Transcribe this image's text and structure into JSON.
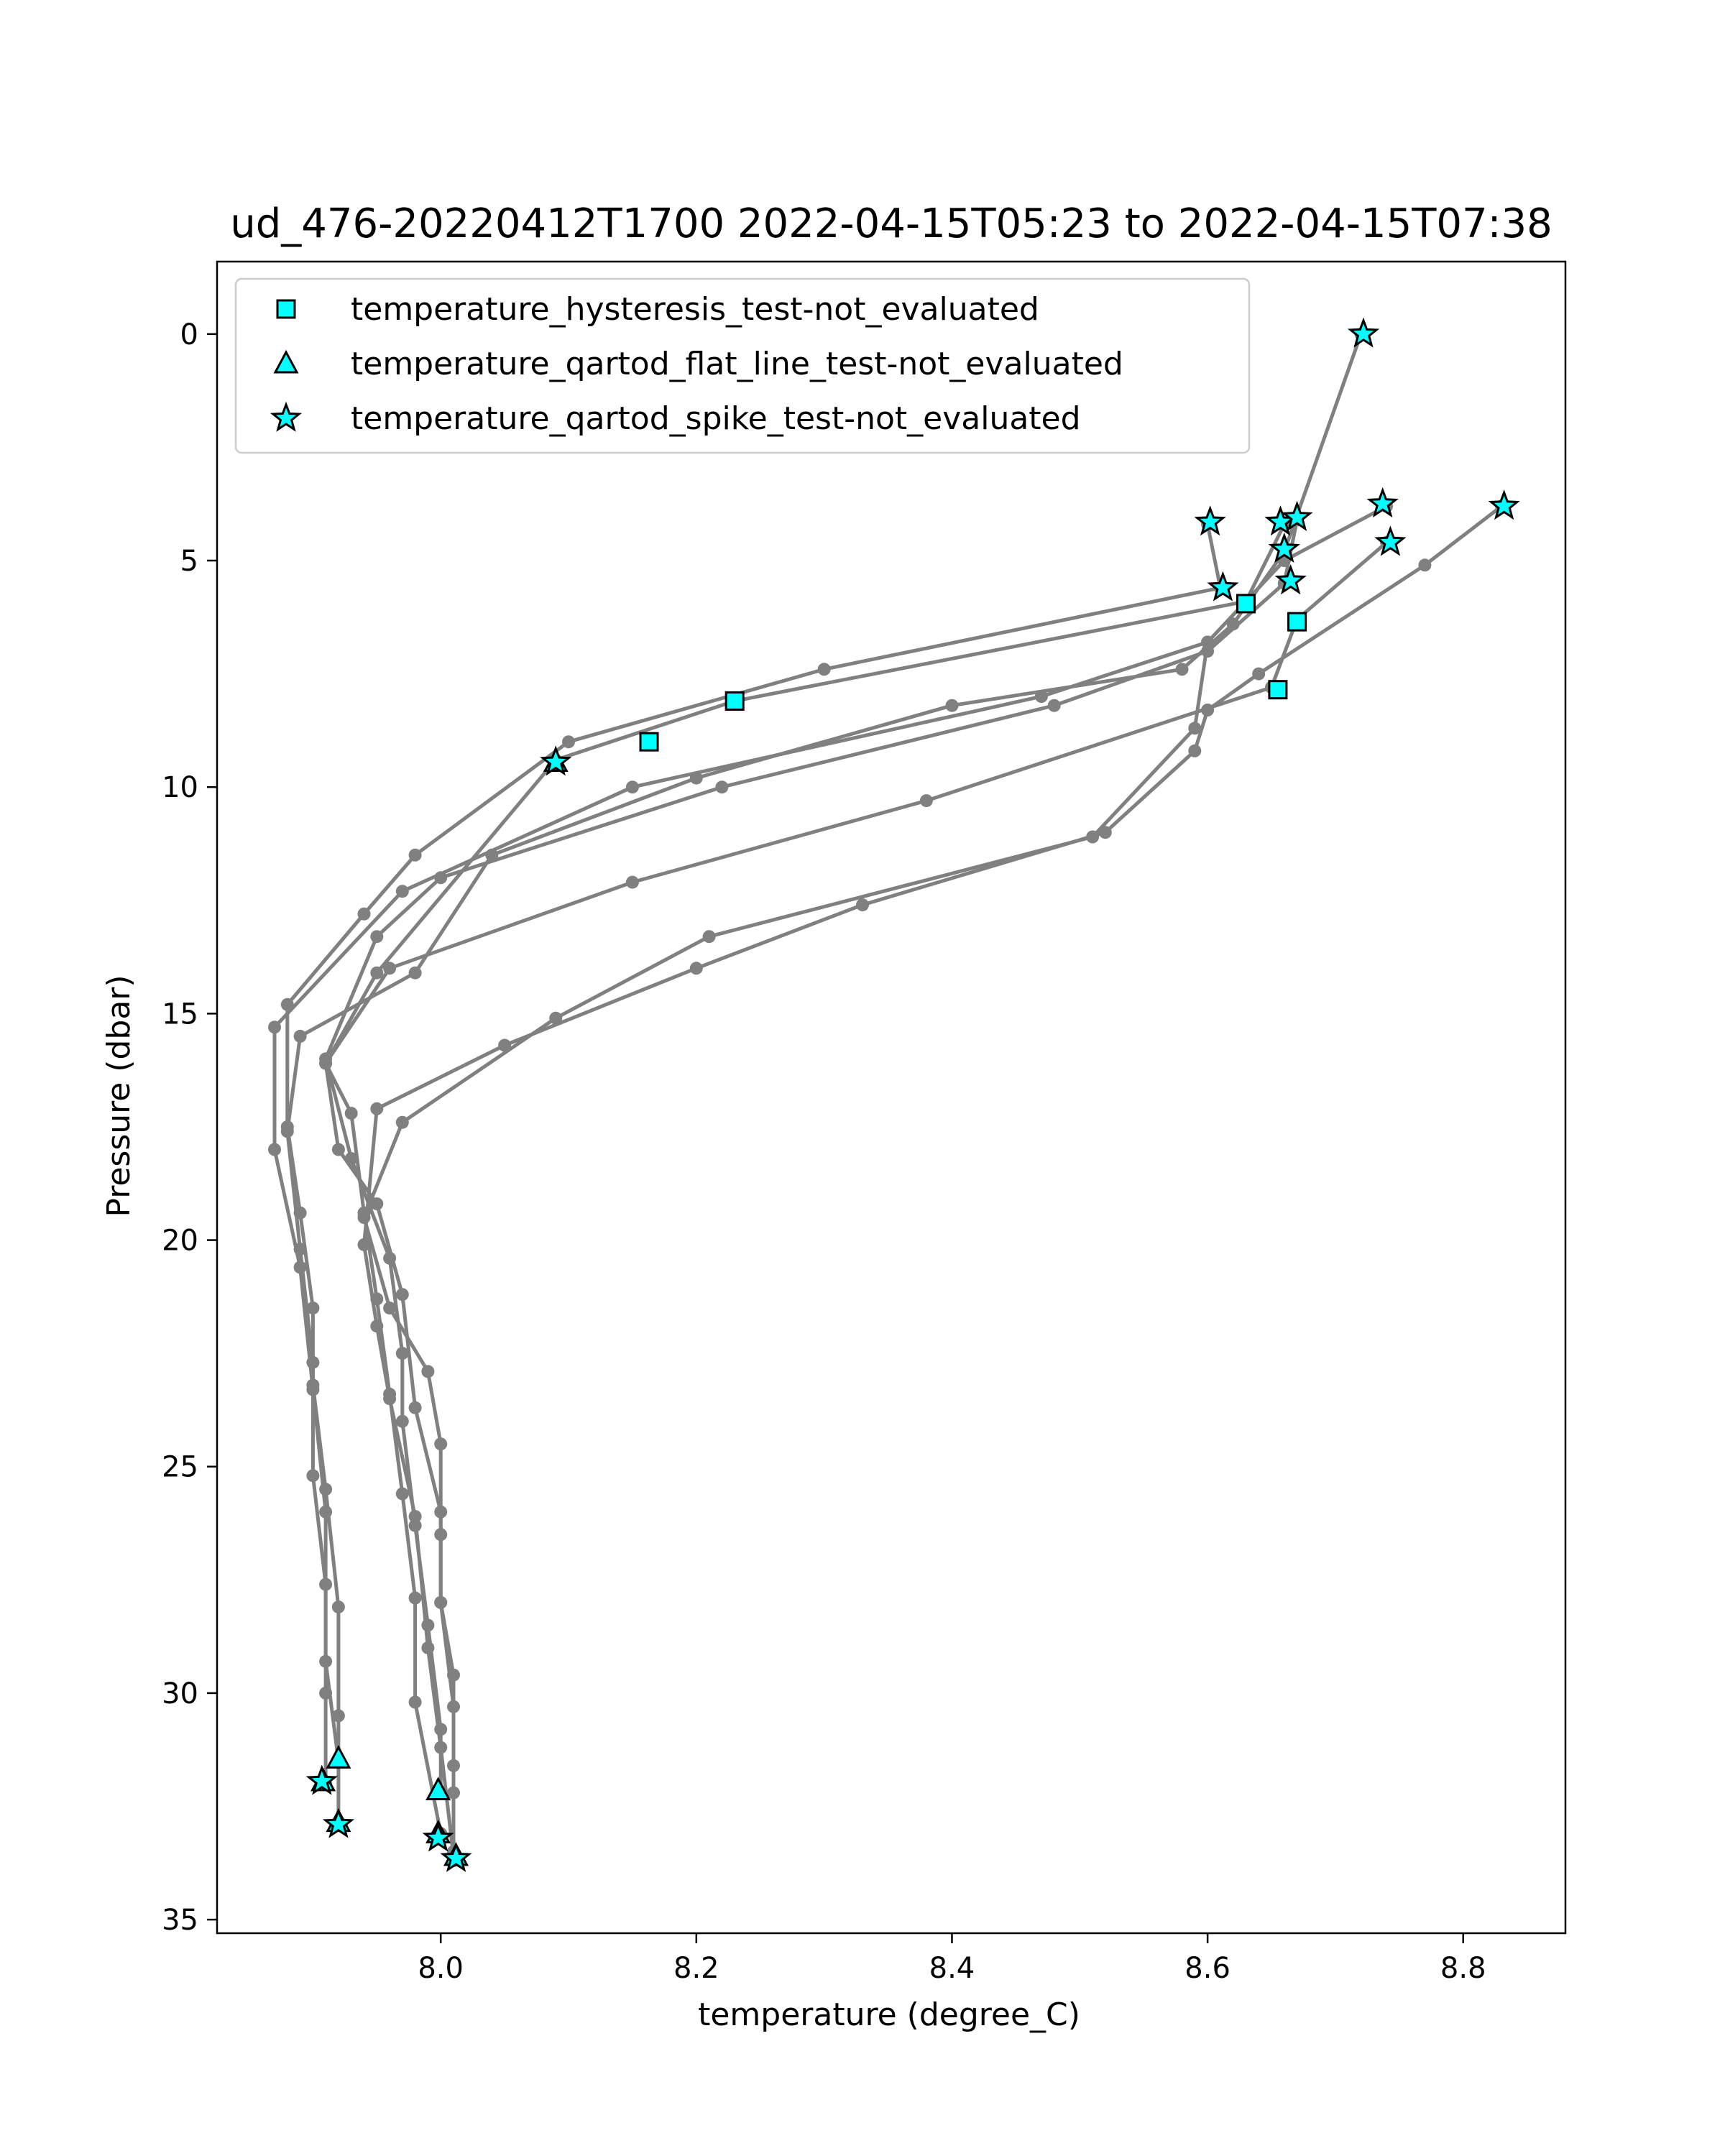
{
  "chart_data": {
    "type": "scatter",
    "title": "ud_476-20220412T1700 2022-04-15T05:23 to 2022-04-15T07:38",
    "xlabel": "temperature (degree_C)",
    "ylabel": "Pressure (dbar)",
    "xlim": [
      7.825,
      8.88
    ],
    "ylim": [
      35.3,
      -1.6
    ],
    "y_inverted": true,
    "grid": false,
    "legend_position": "top-left",
    "x_ticks": [
      {
        "value": 8.0,
        "label": "8.0"
      },
      {
        "value": 8.2,
        "label": "8.2"
      },
      {
        "value": 8.4,
        "label": "8.4"
      },
      {
        "value": 8.6,
        "label": "8.6"
      },
      {
        "value": 8.8,
        "label": "8.8"
      }
    ],
    "y_ticks": [
      {
        "value": 0,
        "label": "0"
      },
      {
        "value": 5,
        "label": "5"
      },
      {
        "value": 10,
        "label": "10"
      },
      {
        "value": 15,
        "label": "15"
      },
      {
        "value": 20,
        "label": "20"
      },
      {
        "value": 25,
        "label": "25"
      },
      {
        "value": 30,
        "label": "30"
      },
      {
        "value": 35,
        "label": "35"
      }
    ],
    "profile_color": "#808080",
    "flag_color": "#00ffff",
    "profiles": [
      [
        [
          8.72,
          0.0
        ],
        [
          8.66,
          4.8
        ],
        [
          8.62,
          6.4
        ],
        [
          8.58,
          7.4
        ],
        [
          8.4,
          8.2
        ],
        [
          8.2,
          9.8
        ],
        [
          8.04,
          11.5
        ],
        [
          7.98,
          14.1
        ],
        [
          7.89,
          15.5
        ],
        [
          7.88,
          17.6
        ],
        [
          7.89,
          20.2
        ],
        [
          7.9,
          22.7
        ],
        [
          7.9,
          25.2
        ],
        [
          7.91,
          27.6
        ],
        [
          7.91,
          30.0
        ],
        [
          7.91,
          32.0
        ]
      ],
      [
        [
          8.6,
          4.2
        ],
        [
          8.61,
          5.6
        ],
        [
          8.3,
          7.4
        ],
        [
          8.1,
          9.0
        ],
        [
          7.98,
          11.5
        ],
        [
          7.94,
          12.8
        ],
        [
          7.88,
          14.8
        ],
        [
          7.88,
          17.5
        ],
        [
          7.89,
          19.4
        ],
        [
          7.9,
          21.5
        ],
        [
          7.9,
          23.2
        ],
        [
          7.91,
          25.5
        ],
        [
          7.92,
          28.1
        ],
        [
          7.92,
          30.5
        ],
        [
          7.92,
          32.9
        ]
      ],
      [
        [
          8.74,
          3.8
        ],
        [
          8.66,
          5.0
        ],
        [
          8.6,
          6.8
        ],
        [
          8.47,
          8.0
        ],
        [
          8.15,
          10.0
        ],
        [
          7.97,
          12.3
        ],
        [
          7.87,
          15.3
        ],
        [
          7.87,
          18.0
        ],
        [
          7.89,
          20.6
        ],
        [
          7.9,
          23.3
        ],
        [
          7.91,
          26.0
        ],
        [
          7.91,
          29.3
        ],
        [
          7.92,
          31.5
        ]
      ],
      [
        [
          8.67,
          4.1
        ],
        [
          8.66,
          5.5
        ],
        [
          8.6,
          7.0
        ],
        [
          8.48,
          8.2
        ],
        [
          8.22,
          10.0
        ],
        [
          8.0,
          12.0
        ],
        [
          7.95,
          13.3
        ],
        [
          7.91,
          16.0
        ],
        [
          7.93,
          18.2
        ],
        [
          7.96,
          20.4
        ],
        [
          7.97,
          22.5
        ],
        [
          7.97,
          24.0
        ],
        [
          7.98,
          26.3
        ],
        [
          7.99,
          28.5
        ],
        [
          8.0,
          30.8
        ],
        [
          8.0,
          32.2
        ]
      ],
      [
        [
          8.66,
          4.2
        ],
        [
          8.63,
          5.9
        ],
        [
          8.23,
          8.1
        ],
        [
          8.09,
          9.4
        ],
        [
          7.95,
          14.1
        ],
        [
          7.91,
          16.1
        ],
        [
          7.92,
          18.0
        ],
        [
          7.95,
          19.2
        ],
        [
          7.97,
          21.2
        ],
        [
          7.98,
          23.7
        ],
        [
          8.0,
          26.0
        ],
        [
          8.0,
          28.0
        ],
        [
          8.01,
          30.3
        ],
        [
          8.01,
          32.2
        ],
        [
          8.01,
          33.7
        ]
      ],
      [
        [
          8.74,
          4.6
        ],
        [
          8.67,
          6.3
        ],
        [
          8.65,
          7.8
        ],
        [
          8.38,
          10.3
        ],
        [
          8.15,
          12.1
        ],
        [
          7.96,
          14.0
        ],
        [
          7.91,
          16.1
        ],
        [
          7.93,
          17.2
        ],
        [
          7.94,
          19.4
        ],
        [
          7.95,
          21.3
        ],
        [
          7.96,
          23.4
        ],
        [
          7.97,
          25.6
        ],
        [
          7.98,
          27.9
        ],
        [
          7.98,
          30.2
        ],
        [
          8.0,
          33.1
        ]
      ],
      [
        [
          8.83,
          3.8
        ],
        [
          8.77,
          5.1
        ],
        [
          8.64,
          7.5
        ],
        [
          8.6,
          8.3
        ],
        [
          8.59,
          9.2
        ],
        [
          8.52,
          11.0
        ],
        [
          8.33,
          12.6
        ],
        [
          8.2,
          14.0
        ],
        [
          8.05,
          15.7
        ],
        [
          7.95,
          17.1
        ],
        [
          7.94,
          20.1
        ],
        [
          7.95,
          21.9
        ],
        [
          7.96,
          23.5
        ],
        [
          7.98,
          26.1
        ],
        [
          7.99,
          29.0
        ],
        [
          8.0,
          31.2
        ],
        [
          8.01,
          33.6
        ]
      ],
      [
        [
          8.6,
          6.8
        ],
        [
          8.59,
          8.7
        ],
        [
          8.51,
          11.1
        ],
        [
          8.21,
          13.3
        ],
        [
          8.09,
          15.1
        ],
        [
          7.97,
          17.4
        ],
        [
          7.94,
          19.5
        ],
        [
          7.96,
          21.5
        ],
        [
          7.99,
          22.9
        ],
        [
          8.0,
          24.5
        ],
        [
          8.0,
          26.5
        ],
        [
          8.0,
          28.0
        ],
        [
          8.01,
          29.6
        ],
        [
          8.01,
          31.6
        ],
        [
          8.01,
          33.5
        ]
      ]
    ],
    "series": [
      {
        "name": "temperature_hysteresis_test-not_evaluated",
        "marker": "square",
        "points": [
          [
            8.63,
            5.95
          ],
          [
            8.67,
            6.35
          ],
          [
            8.655,
            7.85
          ],
          [
            8.23,
            8.1
          ],
          [
            8.163,
            9.0
          ]
        ]
      },
      {
        "name": "temperature_qartod_flat_line_test-not_evaluated",
        "marker": "triangle",
        "points": [
          [
            8.09,
            9.45
          ],
          [
            7.92,
            31.45
          ],
          [
            7.998,
            32.15
          ],
          [
            7.908,
            31.95
          ],
          [
            7.92,
            32.85
          ],
          [
            7.998,
            33.1
          ],
          [
            8.012,
            33.6
          ]
        ]
      },
      {
        "name": "temperature_qartod_spike_test-not_evaluated",
        "marker": "star",
        "points": [
          [
            8.722,
            0.0
          ],
          [
            8.737,
            3.75
          ],
          [
            8.832,
            3.8
          ],
          [
            8.602,
            4.15
          ],
          [
            8.657,
            4.15
          ],
          [
            8.67,
            4.05
          ],
          [
            8.743,
            4.6
          ],
          [
            8.66,
            4.75
          ],
          [
            8.665,
            5.45
          ],
          [
            8.612,
            5.6
          ],
          [
            8.09,
            9.45
          ],
          [
            7.907,
            31.95
          ],
          [
            7.92,
            32.9
          ],
          [
            7.998,
            33.2
          ],
          [
            8.012,
            33.65
          ]
        ]
      }
    ]
  }
}
